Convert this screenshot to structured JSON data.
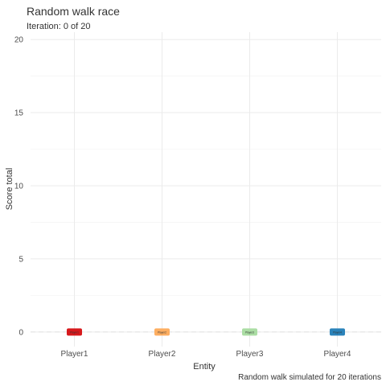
{
  "chart_data": {
    "type": "bar",
    "title": "Random walk race",
    "subtitle": "Iteration: 0 of 20",
    "xlabel": "Entity",
    "ylabel": "Score total",
    "caption": "Random walk simulated for 20 iterations",
    "categories": [
      "Player1",
      "Player2",
      "Player3",
      "Player4"
    ],
    "values": [
      0,
      0,
      0,
      0
    ],
    "bar_labels": [
      "Player1",
      "Player2",
      "Player3",
      "Player4"
    ],
    "colors": [
      "#d7191c",
      "#fdae61",
      "#abdda4",
      "#2b83ba"
    ],
    "yticks": [
      0,
      5,
      10,
      15,
      20
    ],
    "ylim": [
      -1,
      20.5
    ],
    "grid": true,
    "legend": "none"
  }
}
